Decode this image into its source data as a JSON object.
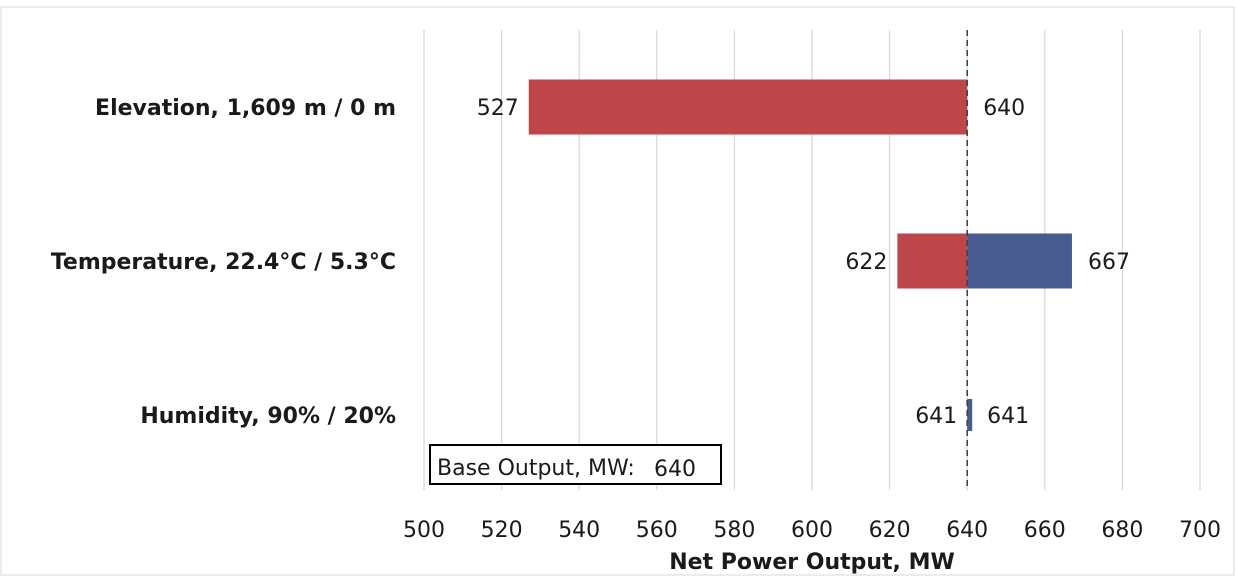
{
  "chart_data": {
    "type": "bar",
    "orientation": "horizontal",
    "style": "tornado",
    "categories": [
      "Elevation, 1,609 m / 0 m",
      "Temperature, 22.4°C / 5.3°C",
      "Humidity, 90% / 20%"
    ],
    "base_value": 640,
    "low_values": [
      527,
      622,
      641
    ],
    "high_values": [
      640,
      667,
      641
    ],
    "colors": {
      "low": "#be4549",
      "high": "#4a5b91"
    },
    "xlabel": "Net Power Output, MW",
    "xlim": [
      500,
      700
    ],
    "xticks": [
      500,
      520,
      540,
      560,
      580,
      600,
      620,
      640,
      660,
      680,
      700
    ],
    "grid": true,
    "baseline_style": "dashed",
    "annotation": {
      "label": "Base Output, MW:",
      "value": "640"
    }
  }
}
